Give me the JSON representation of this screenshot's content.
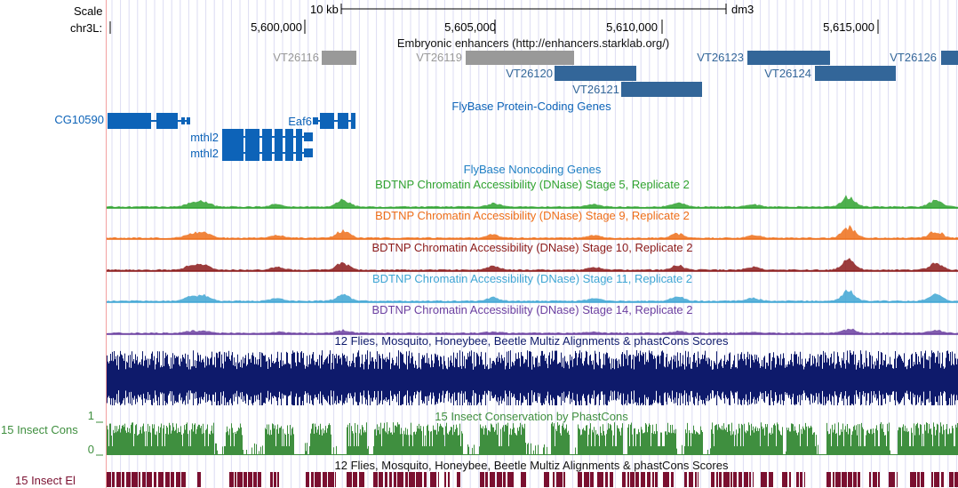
{
  "browser": {
    "scale_label": "Scale",
    "scale_value": "10 kb",
    "assembly": "dm3",
    "chrom_label": "chr3L:",
    "positions": [
      "5,600,000",
      "5,605,000",
      "5,610,000",
      "5,615,000"
    ]
  },
  "tracks": {
    "enhancers": {
      "title": "Embryonic enhancers (http://enhancers.starklab.org/)",
      "gray_color": "#999999",
      "blue_color": "#336699",
      "items": [
        {
          "name": "VT26116",
          "shade": "gray"
        },
        {
          "name": "VT26119",
          "shade": "gray"
        },
        {
          "name": "VT26120",
          "shade": "blue"
        },
        {
          "name": "VT26121",
          "shade": "blue"
        },
        {
          "name": "VT26123",
          "shade": "blue"
        },
        {
          "name": "VT26124",
          "shade": "blue"
        },
        {
          "name": "VT26126",
          "shade": "blue"
        }
      ]
    },
    "coding": {
      "title": "FlyBase Protein-Coding Genes",
      "color": "#0d63b8",
      "genes": [
        "CG10590",
        "Eaf6",
        "mthl2",
        "mthl2"
      ]
    },
    "noncoding": {
      "title": "FlyBase Noncoding Genes",
      "color": "#1f7fc4"
    },
    "dnase": [
      {
        "title": "BDTNP Chromatin Accessibility (DNase) Stage 5, Replicate 2",
        "color": "#2fa22f"
      },
      {
        "title": "BDTNP Chromatin Accessibility (DNase) Stage 9, Replicate 2",
        "color": "#ee6e19"
      },
      {
        "title": "BDTNP Chromatin Accessibility (DNase) Stage 10, Replicate 2",
        "color": "#8b1a1a"
      },
      {
        "title": "BDTNP Chromatin Accessibility (DNase) Stage 11, Replicate 2",
        "color": "#3fa6d4"
      },
      {
        "title": "BDTNP Chromatin Accessibility (DNase) Stage 14, Replicate 2",
        "color": "#6b3fa0"
      }
    ],
    "multiz": {
      "title": "12 Flies, Mosquito, Honeybee, Beetle Multiz Alignments & phastCons Scores",
      "color": "#0e1a6b"
    },
    "cons": {
      "title": "15 Insect Conservation by PhastCons",
      "side_label": "15 Insect Cons",
      "ymax": "1",
      "ymin": "0",
      "color": "#3f8f3f"
    },
    "elements": {
      "title": "12 Flies, Mosquito, Honeybee, Beetle Multiz Alignments & phastCons Scores",
      "side_label": "15 Insect El",
      "color": "#7a1030"
    }
  }
}
